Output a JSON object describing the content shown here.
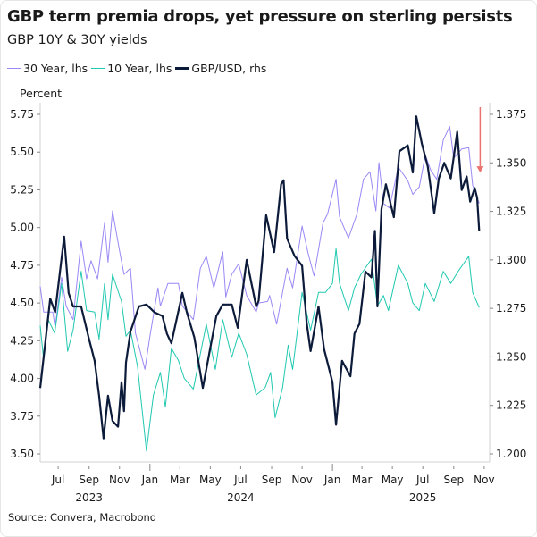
{
  "title": "GBP term premia drops, yet pressure on sterling persists",
  "subtitle": "GBP 10Y & 30Y yields",
  "source": "Source: Convera, Macrobond",
  "chart_data": {
    "type": "line",
    "title": "GBP term premia drops, yet pressure on sterling persists",
    "subtitle": "GBP 10Y & 30Y yields",
    "ylabel_left": "Percent",
    "ylim_left": [
      3.5,
      5.75
    ],
    "yticks_left": [
      "3.50",
      "3.75",
      "4.00",
      "4.25",
      "4.50",
      "4.75",
      "5.00",
      "5.25",
      "5.50",
      "5.75"
    ],
    "ylim_right": [
      1.2,
      1.375
    ],
    "yticks_right": [
      "1.200",
      "1.225",
      "1.250",
      "1.275",
      "1.300",
      "1.325",
      "1.350",
      "1.375"
    ],
    "xlim": [
      "2023-05-26",
      "2025-11-12"
    ],
    "xticks": [
      {
        "date": "2023-07-01",
        "label": "Jul"
      },
      {
        "date": "2023-09-01",
        "label": "Sep"
      },
      {
        "date": "2023-11-01",
        "label": "Nov"
      },
      {
        "date": "2024-01-01",
        "label": "Jan",
        "major": true
      },
      {
        "date": "2024-03-01",
        "label": "Mar"
      },
      {
        "date": "2024-05-01",
        "label": "May"
      },
      {
        "date": "2024-07-01",
        "label": "Jul"
      },
      {
        "date": "2024-09-01",
        "label": "Sep"
      },
      {
        "date": "2024-11-01",
        "label": "Nov"
      },
      {
        "date": "2025-01-01",
        "label": "Jan",
        "major": true
      },
      {
        "date": "2025-03-01",
        "label": "Mar"
      },
      {
        "date": "2025-05-01",
        "label": "May"
      },
      {
        "date": "2025-07-01",
        "label": "Jul"
      },
      {
        "date": "2025-09-01",
        "label": "Sep"
      },
      {
        "date": "2025-11-01",
        "label": "Nov"
      }
    ],
    "year_labels": [
      {
        "date": "2023-09-01",
        "label": "2023"
      },
      {
        "date": "2024-07-01",
        "label": "2024"
      },
      {
        "date": "2025-07-01",
        "label": "2025"
      }
    ],
    "grid": false,
    "legend_position": "top-left",
    "annotation": {
      "type": "arrow",
      "direction": "down",
      "color": "#e8736f",
      "from_date": "2025-10-24",
      "y_from": 1.375,
      "y_to": 1.345
    },
    "series": [
      {
        "name": "30 Year, lhs",
        "axis": "left",
        "color": "#9b87f5",
        "width": 1,
        "points": [
          [
            "2023-05-26",
            4.61
          ],
          [
            "2023-06-02",
            4.44
          ],
          [
            "2023-06-20",
            4.44
          ],
          [
            "2023-06-25",
            4.34
          ],
          [
            "2023-07-08",
            4.67
          ],
          [
            "2023-07-17",
            4.48
          ],
          [
            "2023-07-31",
            4.39
          ],
          [
            "2023-08-16",
            4.91
          ],
          [
            "2023-08-27",
            4.66
          ],
          [
            "2023-09-05",
            4.78
          ],
          [
            "2023-09-18",
            4.66
          ],
          [
            "2023-10-02",
            5.03
          ],
          [
            "2023-10-09",
            4.77
          ],
          [
            "2023-10-18",
            5.11
          ],
          [
            "2023-11-02",
            4.83
          ],
          [
            "2023-11-10",
            4.69
          ],
          [
            "2023-11-23",
            4.73
          ],
          [
            "2023-12-03",
            4.3
          ],
          [
            "2023-12-22",
            4.06
          ],
          [
            "2024-01-01",
            4.28
          ],
          [
            "2024-01-17",
            4.6
          ],
          [
            "2024-01-22",
            4.48
          ],
          [
            "2024-02-06",
            4.63
          ],
          [
            "2024-02-27",
            4.63
          ],
          [
            "2024-03-06",
            4.48
          ],
          [
            "2024-03-28",
            4.39
          ],
          [
            "2024-04-11",
            4.73
          ],
          [
            "2024-04-23",
            4.81
          ],
          [
            "2024-05-08",
            4.6
          ],
          [
            "2024-05-26",
            4.84
          ],
          [
            "2024-06-01",
            4.54
          ],
          [
            "2024-06-13",
            4.69
          ],
          [
            "2024-06-27",
            4.76
          ],
          [
            "2024-07-13",
            4.55
          ],
          [
            "2024-08-01",
            4.44
          ],
          [
            "2024-08-06",
            4.5
          ],
          [
            "2024-08-24",
            4.51
          ],
          [
            "2024-08-28",
            4.55
          ],
          [
            "2024-09-11",
            4.36
          ],
          [
            "2024-10-02",
            4.73
          ],
          [
            "2024-10-13",
            4.6
          ],
          [
            "2024-11-01",
            5.01
          ],
          [
            "2024-11-13",
            4.83
          ],
          [
            "2024-11-25",
            4.68
          ],
          [
            "2024-12-13",
            5.03
          ],
          [
            "2024-12-22",
            5.09
          ],
          [
            "2025-01-08",
            5.32
          ],
          [
            "2025-01-15",
            5.07
          ],
          [
            "2025-02-02",
            4.93
          ],
          [
            "2025-02-19",
            5.09
          ],
          [
            "2025-03-04",
            5.32
          ],
          [
            "2025-03-17",
            5.37
          ],
          [
            "2025-03-29",
            5.11
          ],
          [
            "2025-04-04",
            5.43
          ],
          [
            "2025-04-13",
            5.16
          ],
          [
            "2025-04-25",
            5.13
          ],
          [
            "2025-05-13",
            5.4
          ],
          [
            "2025-06-01",
            5.31
          ],
          [
            "2025-06-11",
            5.22
          ],
          [
            "2025-06-24",
            5.27
          ],
          [
            "2025-07-06",
            5.48
          ],
          [
            "2025-07-17",
            5.38
          ],
          [
            "2025-07-29",
            5.32
          ],
          [
            "2025-08-11",
            5.58
          ],
          [
            "2025-08-24",
            5.67
          ],
          [
            "2025-09-01",
            5.46
          ],
          [
            "2025-09-17",
            5.52
          ],
          [
            "2025-10-01",
            5.53
          ],
          [
            "2025-10-09",
            5.28
          ],
          [
            "2025-10-22",
            5.16
          ]
        ]
      },
      {
        "name": "10 Year, lhs",
        "axis": "left",
        "color": "#1fc8b0",
        "width": 1,
        "points": [
          [
            "2023-05-26",
            4.35
          ],
          [
            "2023-06-02",
            4.12
          ],
          [
            "2023-06-11",
            4.39
          ],
          [
            "2023-06-24",
            4.3
          ],
          [
            "2023-07-08",
            4.63
          ],
          [
            "2023-07-20",
            4.18
          ],
          [
            "2023-07-31",
            4.32
          ],
          [
            "2023-08-16",
            4.71
          ],
          [
            "2023-08-27",
            4.45
          ],
          [
            "2023-09-12",
            4.44
          ],
          [
            "2023-09-21",
            4.26
          ],
          [
            "2023-10-02",
            4.63
          ],
          [
            "2023-10-09",
            4.39
          ],
          [
            "2023-10-18",
            4.69
          ],
          [
            "2023-11-05",
            4.51
          ],
          [
            "2023-11-14",
            4.28
          ],
          [
            "2023-11-23",
            4.32
          ],
          [
            "2023-12-07",
            4.08
          ],
          [
            "2023-12-25",
            3.52
          ],
          [
            "2024-01-08",
            3.89
          ],
          [
            "2024-01-22",
            4.04
          ],
          [
            "2024-02-01",
            3.81
          ],
          [
            "2024-02-13",
            4.2
          ],
          [
            "2024-02-27",
            4.12
          ],
          [
            "2024-03-10",
            4.0
          ],
          [
            "2024-03-28",
            3.93
          ],
          [
            "2024-04-06",
            4.08
          ],
          [
            "2024-04-23",
            4.36
          ],
          [
            "2024-05-11",
            4.06
          ],
          [
            "2024-05-26",
            4.39
          ],
          [
            "2024-06-13",
            4.14
          ],
          [
            "2024-06-27",
            4.3
          ],
          [
            "2024-07-13",
            4.16
          ],
          [
            "2024-08-01",
            3.89
          ],
          [
            "2024-08-19",
            3.94
          ],
          [
            "2024-08-30",
            4.04
          ],
          [
            "2024-09-08",
            3.74
          ],
          [
            "2024-09-23",
            3.94
          ],
          [
            "2024-10-04",
            4.22
          ],
          [
            "2024-10-13",
            4.06
          ],
          [
            "2024-11-01",
            4.57
          ],
          [
            "2024-11-18",
            4.32
          ],
          [
            "2024-12-04",
            4.57
          ],
          [
            "2024-12-18",
            4.57
          ],
          [
            "2025-01-01",
            4.63
          ],
          [
            "2025-01-08",
            4.86
          ],
          [
            "2025-01-15",
            4.63
          ],
          [
            "2025-02-02",
            4.45
          ],
          [
            "2025-02-14",
            4.6
          ],
          [
            "2025-02-27",
            4.69
          ],
          [
            "2025-03-20",
            4.79
          ],
          [
            "2025-04-01",
            4.48
          ],
          [
            "2025-04-13",
            4.55
          ],
          [
            "2025-04-23",
            4.45
          ],
          [
            "2025-05-13",
            4.75
          ],
          [
            "2025-06-01",
            4.63
          ],
          [
            "2025-06-11",
            4.5
          ],
          [
            "2025-06-24",
            4.45
          ],
          [
            "2025-07-06",
            4.63
          ],
          [
            "2025-07-24",
            4.51
          ],
          [
            "2025-08-11",
            4.71
          ],
          [
            "2025-08-26",
            4.63
          ],
          [
            "2025-09-10",
            4.71
          ],
          [
            "2025-10-01",
            4.81
          ],
          [
            "2025-10-09",
            4.57
          ],
          [
            "2025-10-22",
            4.47
          ]
        ]
      },
      {
        "name": "GBP/USD, rhs",
        "axis": "right",
        "color": "#0d1b3a",
        "width": 2.2,
        "points": [
          [
            "2023-05-26",
            1.234
          ],
          [
            "2023-06-15",
            1.28
          ],
          [
            "2023-06-25",
            1.273
          ],
          [
            "2023-07-13",
            1.312
          ],
          [
            "2023-07-22",
            1.283
          ],
          [
            "2023-07-31",
            1.276
          ],
          [
            "2023-08-16",
            1.276
          ],
          [
            "2023-08-31",
            1.26
          ],
          [
            "2023-09-12",
            1.248
          ],
          [
            "2023-09-21",
            1.23
          ],
          [
            "2023-09-30",
            1.208
          ],
          [
            "2023-10-09",
            1.23
          ],
          [
            "2023-10-18",
            1.217
          ],
          [
            "2023-10-29",
            1.214
          ],
          [
            "2023-11-05",
            1.237
          ],
          [
            "2023-11-10",
            1.222
          ],
          [
            "2023-11-14",
            1.247
          ],
          [
            "2023-11-23",
            1.263
          ],
          [
            "2023-12-10",
            1.276
          ],
          [
            "2023-12-25",
            1.277
          ],
          [
            "2024-01-10",
            1.273
          ],
          [
            "2024-01-26",
            1.271
          ],
          [
            "2024-02-04",
            1.262
          ],
          [
            "2024-02-13",
            1.257
          ],
          [
            "2024-03-06",
            1.283
          ],
          [
            "2024-03-15",
            1.273
          ],
          [
            "2024-03-30",
            1.26
          ],
          [
            "2024-04-16",
            1.234
          ],
          [
            "2024-05-02",
            1.256
          ],
          [
            "2024-05-13",
            1.271
          ],
          [
            "2024-05-26",
            1.277
          ],
          [
            "2024-06-13",
            1.277
          ],
          [
            "2024-06-25",
            1.265
          ],
          [
            "2024-07-13",
            1.3
          ],
          [
            "2024-08-01",
            1.276
          ],
          [
            "2024-08-06",
            1.279
          ],
          [
            "2024-08-21",
            1.323
          ],
          [
            "2024-09-06",
            1.304
          ],
          [
            "2024-09-20",
            1.339
          ],
          [
            "2024-09-25",
            1.341
          ],
          [
            "2024-10-02",
            1.311
          ],
          [
            "2024-10-17",
            1.302
          ],
          [
            "2024-11-01",
            1.297
          ],
          [
            "2024-11-10",
            1.268
          ],
          [
            "2024-11-18",
            1.253
          ],
          [
            "2024-12-04",
            1.276
          ],
          [
            "2024-12-15",
            1.254
          ],
          [
            "2025-01-01",
            1.237
          ],
          [
            "2025-01-08",
            1.215
          ],
          [
            "2025-01-20",
            1.248
          ],
          [
            "2025-02-06",
            1.24
          ],
          [
            "2025-02-14",
            1.262
          ],
          [
            "2025-02-24",
            1.267
          ],
          [
            "2025-03-08",
            1.294
          ],
          [
            "2025-03-20",
            1.291
          ],
          [
            "2025-03-27",
            1.315
          ],
          [
            "2025-04-01",
            1.276
          ],
          [
            "2025-04-09",
            1.326
          ],
          [
            "2025-04-18",
            1.339
          ],
          [
            "2025-05-04",
            1.322
          ],
          [
            "2025-05-15",
            1.356
          ],
          [
            "2025-06-01",
            1.359
          ],
          [
            "2025-06-11",
            1.345
          ],
          [
            "2025-06-18",
            1.374
          ],
          [
            "2025-06-29",
            1.36
          ],
          [
            "2025-07-11",
            1.348
          ],
          [
            "2025-07-24",
            1.324
          ],
          [
            "2025-08-02",
            1.342
          ],
          [
            "2025-08-13",
            1.35
          ],
          [
            "2025-08-26",
            1.342
          ],
          [
            "2025-09-08",
            1.366
          ],
          [
            "2025-09-17",
            1.336
          ],
          [
            "2025-09-27",
            1.343
          ],
          [
            "2025-10-04",
            1.33
          ],
          [
            "2025-10-13",
            1.337
          ],
          [
            "2025-10-18",
            1.332
          ],
          [
            "2025-10-22",
            1.315
          ]
        ]
      }
    ]
  }
}
